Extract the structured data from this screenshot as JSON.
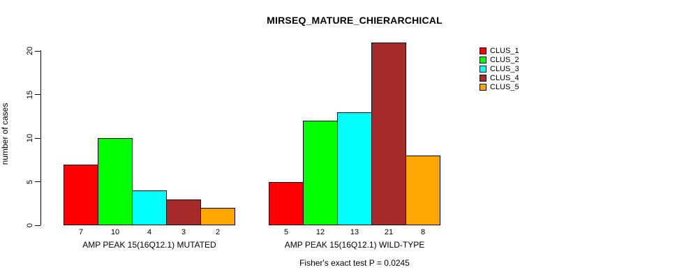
{
  "chart_data": {
    "type": "bar",
    "title": "MIRSEQ_MATURE_CHIERARCHICAL",
    "ylabel": "number of cases",
    "xlabel": "",
    "ylim": [
      0,
      21
    ],
    "yticks": [
      0,
      5,
      10,
      15,
      20
    ],
    "grid": false,
    "legend_position": "top-right",
    "categories": [
      "AMP PEAK 15(16Q12.1) MUTATED",
      "AMP PEAK 15(16Q12.1) WILD-TYPE"
    ],
    "series": [
      {
        "name": "CLUS_1",
        "color": "#FF0000",
        "values": [
          7,
          5
        ]
      },
      {
        "name": "CLUS_2",
        "color": "#00FF00",
        "values": [
          10,
          12
        ]
      },
      {
        "name": "CLUS_3",
        "color": "#00FFFF",
        "values": [
          4,
          13
        ]
      },
      {
        "name": "CLUS_4",
        "color": "#A52A2A",
        "values": [
          3,
          21
        ]
      },
      {
        "name": "CLUS_5",
        "color": "#FFA500",
        "values": [
          2,
          8
        ]
      }
    ],
    "bar_value_labels": [
      [
        7,
        10,
        4,
        3,
        2
      ],
      [
        5,
        12,
        13,
        21,
        8
      ]
    ],
    "annotation": "Fisher's exact test P = 0.0245",
    "colors": {
      "bar_border": "#000000",
      "axis": "#000000",
      "background": "#FFFFFF"
    }
  }
}
